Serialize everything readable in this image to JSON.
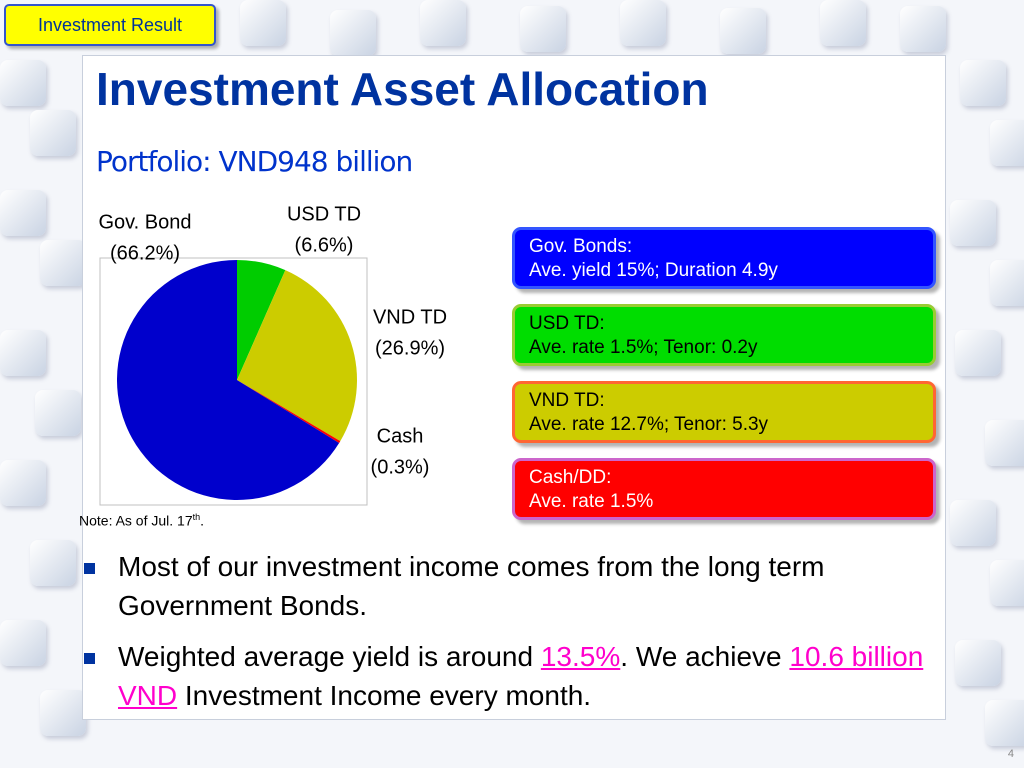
{
  "tag": "Investment Result",
  "title": "Investment Asset Allocation",
  "subtitle": "Portfolio: VND948 billion",
  "chart_data": {
    "type": "pie",
    "categories": [
      "USD TD",
      "VND TD",
      "Cash",
      "Gov. Bond"
    ],
    "values": [
      6.6,
      26.9,
      0.3,
      66.2
    ],
    "value_labels": [
      "(6.6%)",
      "(26.9%)",
      "(0.3%)",
      "(66.2%)"
    ],
    "colors": [
      "#00cc00",
      "#cccc00",
      "#ff0000",
      "#0000cc"
    ]
  },
  "note": [
    "Note: As of Jul. 17",
    "th",
    "."
  ],
  "boxes": [
    {
      "title": "Gov. Bonds:",
      "text": "Ave. yield 15%; Duration 4.9y"
    },
    {
      "title": "USD TD:",
      "text": "Ave. rate 1.5%; Tenor: 0.2y"
    },
    {
      "title": "VND TD:",
      "text": "Ave. rate 12.7%; Tenor: 5.3y"
    },
    {
      "title": "Cash/DD:",
      "text": "Ave. rate 1.5%"
    }
  ],
  "bullets": [
    [
      "Most of our investment income comes from the long term Government Bonds."
    ],
    [
      "Weighted average yield is around ",
      "13.5%",
      ". We achieve ",
      "10.6 billion VND",
      " Investment Income every month."
    ]
  ],
  "page_number": "4"
}
